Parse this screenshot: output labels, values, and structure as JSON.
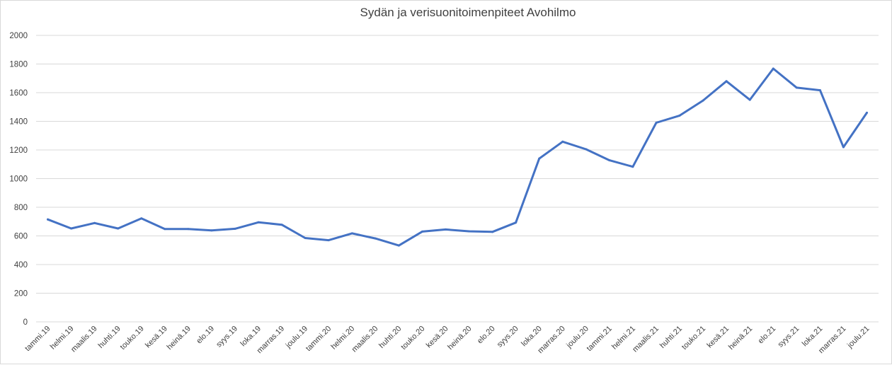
{
  "chart_data": {
    "type": "line",
    "title": "Sydän ja verisuonitoimenpiteet Avohilmo",
    "xlabel": "",
    "ylabel": "",
    "ylim": [
      0,
      2000
    ],
    "yticks": [
      0,
      200,
      400,
      600,
      800,
      1000,
      1200,
      1400,
      1600,
      1800,
      2000
    ],
    "grid": true,
    "legend": "none",
    "categories": [
      "tammi.19",
      "helmi.19",
      "maalis.19",
      "huhti.19",
      "touko.19",
      "kesä.19",
      "heinä.19",
      "elo.19",
      "syys.19",
      "loka.19",
      "marras.19",
      "joulu.19",
      "tammi.20",
      "helmi.20",
      "maalis.20",
      "huhti.20",
      "touko.20",
      "kesä.20",
      "heinä.20",
      "elo.20",
      "syys.20",
      "loka.20",
      "marras.20",
      "joulu.20",
      "tammi.21",
      "helmi.21",
      "maalis.21",
      "huhti.21",
      "touko.21",
      "kesä.21",
      "heinä.21",
      "elo.21",
      "syys.21",
      "loka.21",
      "marras.21",
      "joulu.21"
    ],
    "series": [
      {
        "color": "#4472c4",
        "values": [
          715,
          652,
          690,
          652,
          722,
          648,
          648,
          638,
          650,
          695,
          678,
          585,
          570,
          618,
          582,
          533,
          630,
          645,
          632,
          628,
          693,
          1140,
          1258,
          1205,
          1128,
          1083,
          1390,
          1440,
          1545,
          1680,
          1550,
          1768,
          1635,
          1617,
          1220,
          1460
        ]
      }
    ]
  }
}
